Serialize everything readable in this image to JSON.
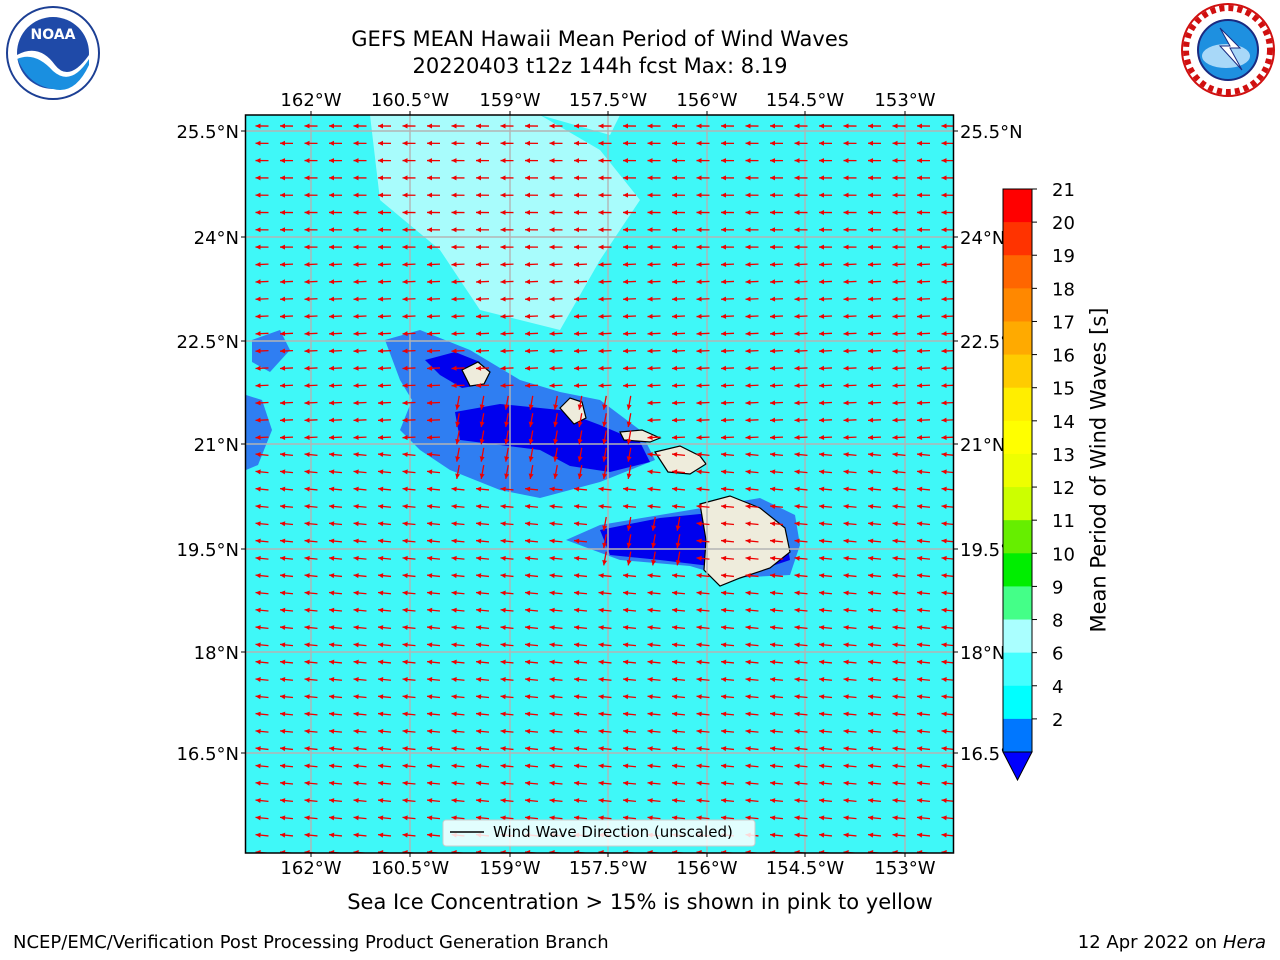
{
  "header": {
    "title_line1": "GEFS MEAN Hawaii Mean Period of Wind Waves",
    "title_line2": "20220403 t12z 144h fcst   Max: 8.19"
  },
  "logos": {
    "left": "noaa-logo",
    "right": "nws-logo",
    "left_text": "NOAA"
  },
  "map": {
    "lon_ticks": [
      "162°W",
      "160.5°W",
      "159°W",
      "157.5°W",
      "156°W",
      "154.5°W",
      "153°W"
    ],
    "lat_ticks": [
      "25.5°N",
      "24°N",
      "22.5°N",
      "21°N",
      "19.5°N",
      "18°N",
      "16.5°N"
    ],
    "legend_label": "Wind Wave Direction (unscaled)",
    "colors": {
      "ocean_main": "#3ff8f8",
      "ocean_light": "#a8fcfc",
      "shallow_blue": "#2f7ef2",
      "deep_blue": "#0000ee",
      "land": "#eeecdc",
      "arrow": "#ee0000"
    }
  },
  "colorbar": {
    "label": "Mean Period of Wind Waves [s]",
    "ticks": [
      "21",
      "20",
      "19",
      "18",
      "17",
      "16",
      "15",
      "14",
      "13",
      "12",
      "11",
      "10",
      "9",
      "8",
      "6",
      "4",
      "2"
    ],
    "colors": [
      "#ff0000",
      "#ff3300",
      "#ff6600",
      "#ff8800",
      "#ffaa00",
      "#ffcc00",
      "#ffee00",
      "#ffff00",
      "#eeff00",
      "#ccff00",
      "#66ee00",
      "#00ee00",
      "#44ff88",
      "#aaffff",
      "#44ffff",
      "#00ffff",
      "#0077ff"
    ],
    "extend_color": "#0000ff"
  },
  "footer": {
    "note": "Sea Ice Concentration > 15% is shown in pink to yellow",
    "credit_left": "NCEP/EMC/Verification Post Processing Product Generation Branch",
    "credit_right_prefix": "12 Apr 2022 on",
    "credit_right_host": "Hera"
  }
}
